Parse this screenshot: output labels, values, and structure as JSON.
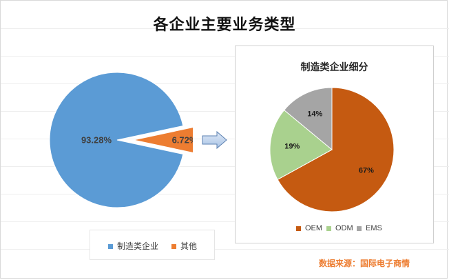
{
  "chart_data": [
    {
      "type": "pie",
      "title": "各企业主要业务类型",
      "series": [
        {
          "name": "制造类企业",
          "value": 93.28,
          "label": "93.28%",
          "color": "#5b9bd5"
        },
        {
          "name": "其他",
          "value": 6.72,
          "label": "6.72%",
          "color": "#ed7d31",
          "exploded": true
        }
      ],
      "legend_position": "bottom"
    },
    {
      "type": "pie",
      "title": "制造类企业细分",
      "series": [
        {
          "name": "OEM",
          "value": 67,
          "label": "67%",
          "color": "#c55a11"
        },
        {
          "name": "ODM",
          "value": 19,
          "label": "19%",
          "color": "#a9d18e"
        },
        {
          "name": "EMS",
          "value": 14,
          "label": "14%",
          "color": "#a5a5a5"
        }
      ],
      "legend_position": "bottom"
    }
  ],
  "source": "数据来源：国际电子商情"
}
